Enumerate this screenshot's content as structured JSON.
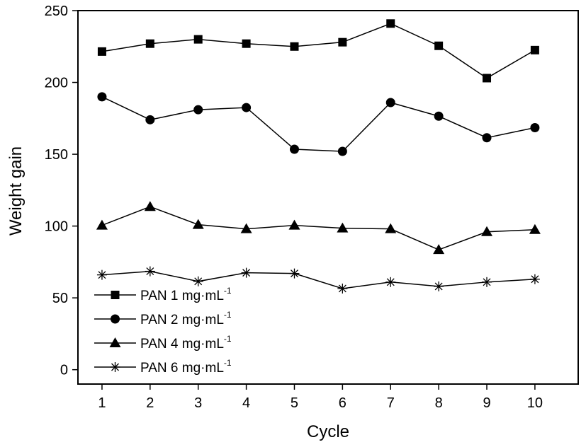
{
  "chart_data": {
    "type": "line",
    "xlabel": "Cycle",
    "ylabel": "Weight gain",
    "x": [
      1,
      2,
      3,
      4,
      5,
      6,
      7,
      8,
      9,
      10
    ],
    "xlim": [
      0.5,
      10.9
    ],
    "ylim": [
      -10,
      250
    ],
    "xticks": [
      1,
      2,
      3,
      4,
      5,
      6,
      7,
      8,
      9,
      10
    ],
    "yticks": [
      0,
      50,
      100,
      150,
      200,
      250
    ],
    "grid": false,
    "legend_position": "bottom-left",
    "series": [
      {
        "name": "PAN 1 mg·mL",
        "sup": "-1",
        "marker": "square",
        "values": [
          221.5,
          227,
          230,
          227,
          225,
          228,
          241,
          225.5,
          203,
          222.5
        ]
      },
      {
        "name": "PAN 2 mg·mL",
        "sup": "-1",
        "marker": "circle",
        "values": [
          190,
          174,
          181,
          182.5,
          153.5,
          152,
          186,
          176.5,
          161.5,
          168.5
        ]
      },
      {
        "name": "PAN 4 mg·mL",
        "sup": "-1",
        "marker": "triangle",
        "values": [
          100.5,
          113.5,
          101,
          98,
          100.5,
          98.5,
          98,
          83.5,
          96,
          97.5
        ]
      },
      {
        "name": "PAN 6 mg·mL",
        "sup": "-1",
        "marker": "asterisk",
        "values": [
          66,
          68.5,
          61.5,
          67.5,
          67,
          56.5,
          61,
          58,
          61,
          63
        ]
      }
    ]
  }
}
